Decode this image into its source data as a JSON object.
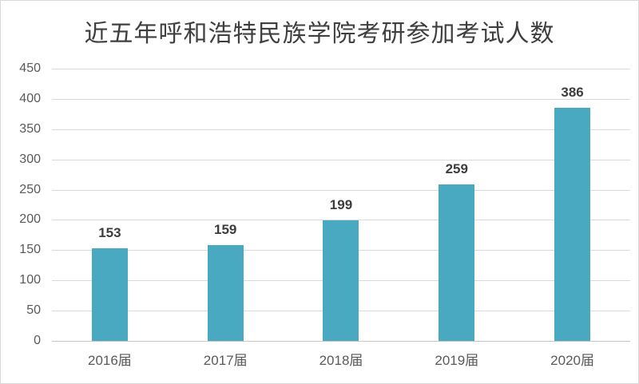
{
  "chart_data": {
    "type": "bar",
    "title": "近五年呼和浩特民族学院考研参加考试人数",
    "categories": [
      "2016届",
      "2017届",
      "2018届",
      "2019届",
      "2020届"
    ],
    "values": [
      153,
      159,
      199,
      259,
      386
    ],
    "data_labels_shown": true,
    "xlabel": "",
    "ylabel": "",
    "ylim": [
      0,
      450
    ],
    "yticks": [
      0,
      50,
      100,
      150,
      200,
      250,
      300,
      350,
      400,
      450
    ],
    "grid": "horizontal",
    "legend_position": "none",
    "bar_color": "#49a9c1",
    "grid_color": "#d9d9d9",
    "baseline_color": "#c6c6c6",
    "title_color": "#3f3f3f",
    "data_label_color": "#3d3d3d",
    "axis_tick_color": "#595959"
  }
}
